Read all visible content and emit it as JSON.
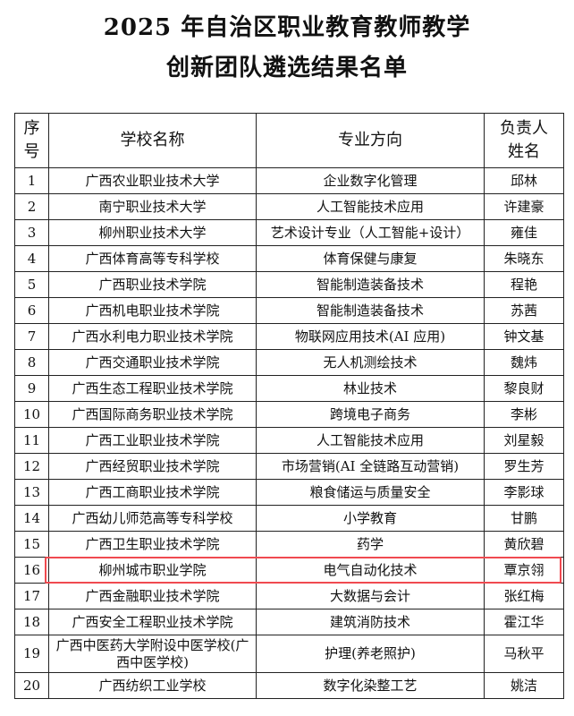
{
  "title_line1": "2025 年自治区职业教育教师教学",
  "title_line2": "创新团队遴选结果名单",
  "headers": {
    "no": "序号",
    "school": "学校名称",
    "major": "专业方向",
    "leader": "负责人姓名"
  },
  "highlight_color": "#f04a50",
  "highlighted_row": "16",
  "rows": [
    {
      "no": "1",
      "school": "广西农业职业技术大学",
      "major": "企业数字化管理",
      "leader": "邱林"
    },
    {
      "no": "2",
      "school": "南宁职业技术大学",
      "major": "人工智能技术应用",
      "leader": "许建豪"
    },
    {
      "no": "3",
      "school": "柳州职业技术大学",
      "major": "艺术设计专业（人工智能+设计）",
      "leader": "雍佳"
    },
    {
      "no": "4",
      "school": "广西体育高等专科学校",
      "major": "体育保健与康复",
      "leader": "朱晓东"
    },
    {
      "no": "5",
      "school": "广西职业技术学院",
      "major": "智能制造装备技术",
      "leader": "程艳"
    },
    {
      "no": "6",
      "school": "广西机电职业技术学院",
      "major": "智能制造装备技术",
      "leader": "苏茜"
    },
    {
      "no": "7",
      "school": "广西水利电力职业技术学院",
      "major": "物联网应用技术(AI 应用)",
      "leader": "钟文基"
    },
    {
      "no": "8",
      "school": "广西交通职业技术学院",
      "major": "无人机测绘技术",
      "leader": "魏炜"
    },
    {
      "no": "9",
      "school": "广西生态工程职业技术学院",
      "major": "林业技术",
      "leader": "黎良财"
    },
    {
      "no": "10",
      "school": "广西国际商务职业技术学院",
      "major": "跨境电子商务",
      "leader": "李彬"
    },
    {
      "no": "11",
      "school": "广西工业职业技术学院",
      "major": "人工智能技术应用",
      "leader": "刘星毅"
    },
    {
      "no": "12",
      "school": "广西经贸职业技术学院",
      "major": "市场营销(AI 全链路互动营销)",
      "leader": "罗生芳"
    },
    {
      "no": "13",
      "school": "广西工商职业技术学院",
      "major": "粮食储运与质量安全",
      "leader": "李影球"
    },
    {
      "no": "14",
      "school": "广西幼儿师范高等专科学校",
      "major": "小学教育",
      "leader": "甘鹏"
    },
    {
      "no": "15",
      "school": "广西卫生职业技术学院",
      "major": "药学",
      "leader": "黄欣碧"
    },
    {
      "no": "16",
      "school": "柳州城市职业学院",
      "major": "电气自动化技术",
      "leader": "覃京翎"
    },
    {
      "no": "17",
      "school": "广西金融职业技术学院",
      "major": "大数据与会计",
      "leader": "张红梅"
    },
    {
      "no": "18",
      "school": "广西安全工程职业技术学院",
      "major": "建筑消防技术",
      "leader": "霍江华"
    },
    {
      "no": "19",
      "school": "广西中医药大学附设中医学校(广西中医学校)",
      "major": "护理(养老照护)",
      "leader": "马秋平"
    },
    {
      "no": "20",
      "school": "广西纺织工业学校",
      "major": "数字化染整工艺",
      "leader": "姚洁"
    }
  ]
}
